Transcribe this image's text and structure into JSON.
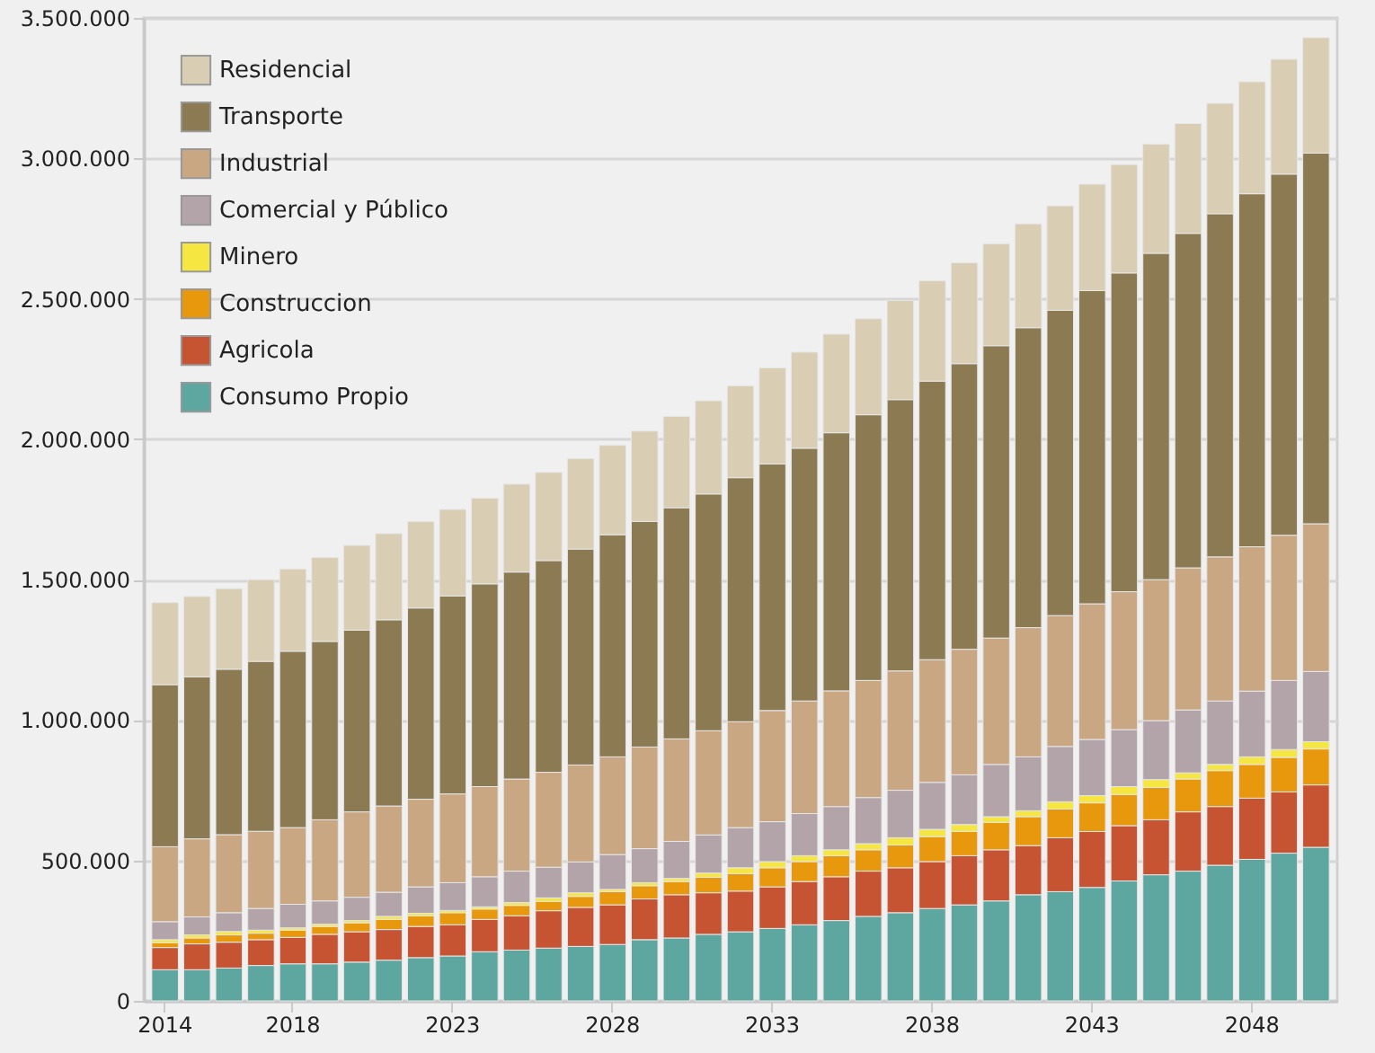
{
  "chart_data": {
    "type": "bar",
    "stacked": true,
    "grid": "y",
    "legend": "top left",
    "categories": [
      "2014",
      null,
      null,
      null,
      "2018",
      null,
      null,
      null,
      null,
      "2023",
      null,
      null,
      null,
      null,
      "2028",
      null,
      null,
      null,
      null,
      "2033",
      null,
      null,
      null,
      null,
      "2038",
      null,
      null,
      null,
      null,
      "2043",
      null,
      null,
      null,
      null,
      "2048",
      null,
      null
    ],
    "ylim": [
      0,
      3500000
    ],
    "yticks": [
      0,
      {
        "value": 500000,
        "label": "500.000"
      },
      {
        "value": 1000000,
        "label": "1.000.000"
      },
      {
        "value": 1500000,
        "label": "1.500.000"
      },
      {
        "value": 2000000,
        "label": "2.000.000"
      },
      {
        "value": 2500000,
        "label": "2.500.000"
      },
      {
        "value": 3000000,
        "label": "3.000.000"
      },
      {
        "value": 3500000,
        "label": "3.500.000"
      }
    ],
    "series": [
      {
        "name": "Consumo  Propio",
        "color": "#5ea6a0",
        "values": [
          111000,
          111000,
          117000,
          126000,
          132000,
          132000,
          138000,
          145000,
          154000,
          160000,
          175000,
          181000,
          188000,
          194000,
          201000,
          218000,
          224000,
          237000,
          246000,
          258000,
          271000,
          286000,
          301000,
          314000,
          329000,
          342000,
          356000,
          378000,
          389000,
          404000,
          427000,
          449000,
          462000,
          483000,
          504000,
          526000,
          547000
        ]
      },
      {
        "name": "Agricola",
        "color": "#c65331",
        "values": [
          79000,
          92000,
          92000,
          92000,
          94000,
          105000,
          108000,
          109000,
          111000,
          111000,
          115000,
          122000,
          133000,
          139000,
          141000,
          145000,
          154000,
          148000,
          145000,
          148000,
          154000,
          156000,
          161000,
          160000,
          167000,
          175000,
          182000,
          175000,
          192000,
          199000,
          197000,
          196000,
          211000,
          209000,
          218000,
          218000,
          222000
        ]
      },
      {
        "name": "Construccion",
        "color": "#e8980c",
        "values": [
          17000,
          21000,
          26000,
          23000,
          26000,
          28000,
          32000,
          36000,
          38000,
          43000,
          37000,
          37000,
          33000,
          39000,
          47000,
          47000,
          47000,
          55000,
          62000,
          68000,
          71000,
          75000,
          76000,
          81000,
          89000,
          86000,
          97000,
          103000,
          102000,
          102000,
          111000,
          115000,
          117000,
          128000,
          120000,
          123000,
          128000
        ]
      },
      {
        "name": "Minero",
        "color": "#f5e642",
        "values": [
          11000,
          11000,
          12000,
          11000,
          8000,
          8000,
          8000,
          11000,
          9000,
          8000,
          8000,
          10000,
          13000,
          13000,
          8000,
          11000,
          11000,
          15000,
          21000,
          22000,
          21000,
          21000,
          22000,
          26000,
          26000,
          25000,
          21000,
          21000,
          26000,
          26000,
          28000,
          28000,
          22000,
          22000,
          27000,
          28000,
          26000
        ]
      },
      {
        "name": "Comercial y Público",
        "color": "#b2a4a8",
        "values": [
          64000,
          64000,
          67000,
          77000,
          84000,
          83000,
          83000,
          86000,
          94000,
          99000,
          107000,
          112000,
          109000,
          110000,
          124000,
          121000,
          132000,
          136000,
          143000,
          142000,
          150000,
          154000,
          164000,
          169000,
          167000,
          177000,
          186000,
          192000,
          197000,
          200000,
          203000,
          210000,
          224000,
          226000,
          234000,
          246000,
          250000
        ]
      },
      {
        "name": "Industrial",
        "color": "#c9a783",
        "values": [
          267000,
          278000,
          278000,
          275000,
          273000,
          289000,
          304000,
          307000,
          312000,
          316000,
          321000,
          328000,
          338000,
          345000,
          348000,
          362000,
          365000,
          371000,
          377000,
          396000,
          401000,
          412000,
          417000,
          425000,
          437000,
          447000,
          450000,
          460000,
          466000,
          483000,
          491000,
          502000,
          506000,
          513000,
          514000,
          517000,
          526000
        ]
      },
      {
        "name": "Transporte",
        "color": "#8c7a52",
        "values": [
          577000,
          577000,
          589000,
          605000,
          628000,
          635000,
          647000,
          663000,
          681000,
          705000,
          722000,
          737000,
          754000,
          769000,
          791000,
          803000,
          823000,
          843000,
          869000,
          878000,
          900000,
          919000,
          946000,
          966000,
          992000,
          1017000,
          1041000,
          1068000,
          1087000,
          1115000,
          1135000,
          1162000,
          1191000,
          1222000,
          1257000,
          1286000,
          1320000
        ]
      },
      {
        "name": "Residencial",
        "color": "#d9cdb4",
        "values": [
          292000,
          286000,
          287000,
          291000,
          293000,
          299000,
          302000,
          307000,
          308000,
          308000,
          305000,
          313000,
          314000,
          322000,
          318000,
          322000,
          325000,
          332000,
          327000,
          342000,
          342000,
          351000,
          342000,
          353000,
          357000,
          359000,
          363000,
          370000,
          372000,
          379000,
          386000,
          389000,
          391000,
          393000,
          399000,
          409000,
          411000
        ]
      }
    ]
  }
}
